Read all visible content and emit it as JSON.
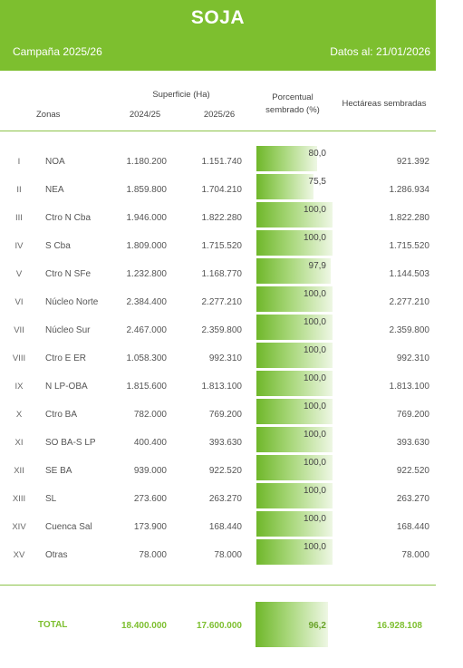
{
  "header": {
    "title": "SOJA",
    "campaign": "Campaña 2025/26",
    "date": "Datos al: 21/01/2026"
  },
  "columns": {
    "superficie": "Superficie (Ha)",
    "zonas": "Zonas",
    "year1": "2024/25",
    "year2": "2025/26",
    "pct_line1": "Porcentual",
    "pct_line2": "sembrado (%)",
    "hectares": "Hectáreas sembradas"
  },
  "rows": [
    {
      "num": "I",
      "zone": "NOA",
      "y1": "1.180.200",
      "y2": "1.151.740",
      "pct": "80,0",
      "pct_value": 80.0,
      "ha": "921.392"
    },
    {
      "num": "II",
      "zone": "NEA",
      "y1": "1.859.800",
      "y2": "1.704.210",
      "pct": "75,5",
      "pct_value": 75.5,
      "ha": "1.286.934"
    },
    {
      "num": "III",
      "zone": "Ctro N Cba",
      "y1": "1.946.000",
      "y2": "1.822.280",
      "pct": "100,0",
      "pct_value": 100.0,
      "ha": "1.822.280"
    },
    {
      "num": "IV",
      "zone": "S Cba",
      "y1": "1.809.000",
      "y2": "1.715.520",
      "pct": "100,0",
      "pct_value": 100.0,
      "ha": "1.715.520"
    },
    {
      "num": "V",
      "zone": "Ctro N SFe",
      "y1": "1.232.800",
      "y2": "1.168.770",
      "pct": "97,9",
      "pct_value": 97.9,
      "ha": "1.144.503"
    },
    {
      "num": "VI",
      "zone": "Núcleo Norte",
      "y1": "2.384.400",
      "y2": "2.277.210",
      "pct": "100,0",
      "pct_value": 100.0,
      "ha": "2.277.210"
    },
    {
      "num": "VII",
      "zone": "Núcleo Sur",
      "y1": "2.467.000",
      "y2": "2.359.800",
      "pct": "100,0",
      "pct_value": 100.0,
      "ha": "2.359.800"
    },
    {
      "num": "VIII",
      "zone": "Ctro E ER",
      "y1": "1.058.300",
      "y2": "992.310",
      "pct": "100,0",
      "pct_value": 100.0,
      "ha": "992.310"
    },
    {
      "num": "IX",
      "zone": "N LP-OBA",
      "y1": "1.815.600",
      "y2": "1.813.100",
      "pct": "100,0",
      "pct_value": 100.0,
      "ha": "1.813.100"
    },
    {
      "num": "X",
      "zone": "Ctro BA",
      "y1": "782.000",
      "y2": "769.200",
      "pct": "100,0",
      "pct_value": 100.0,
      "ha": "769.200"
    },
    {
      "num": "XI",
      "zone": "SO BA-S LP",
      "y1": "400.400",
      "y2": "393.630",
      "pct": "100,0",
      "pct_value": 100.0,
      "ha": "393.630"
    },
    {
      "num": "XII",
      "zone": "SE BA",
      "y1": "939.000",
      "y2": "922.520",
      "pct": "100,0",
      "pct_value": 100.0,
      "ha": "922.520"
    },
    {
      "num": "XIII",
      "zone": "SL",
      "y1": "273.600",
      "y2": "263.270",
      "pct": "100,0",
      "pct_value": 100.0,
      "ha": "263.270"
    },
    {
      "num": "XIV",
      "zone": "Cuenca Sal",
      "y1": "173.900",
      "y2": "168.440",
      "pct": "100,0",
      "pct_value": 100.0,
      "ha": "168.440"
    },
    {
      "num": "XV",
      "zone": "Otras",
      "y1": "78.000",
      "y2": "78.000",
      "pct": "100,0",
      "pct_value": 100.0,
      "ha": "78.000"
    }
  ],
  "total": {
    "label": "TOTAL",
    "y1": "18.400.000",
    "y2": "17.600.000",
    "pct": "96,2",
    "ha": "16.928.108"
  }
}
